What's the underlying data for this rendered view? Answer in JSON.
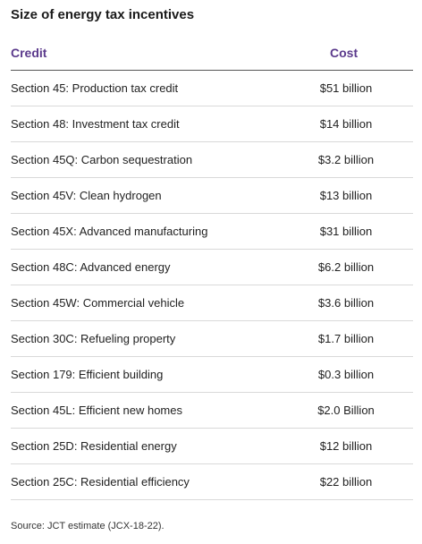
{
  "title": "Size of energy tax incentives",
  "table": {
    "headers": {
      "credit": "Credit",
      "cost": "Cost"
    },
    "rows": [
      {
        "credit": "Section 45: Production tax credit",
        "cost": "$51 billion"
      },
      {
        "credit": "Section 48: Investment tax credit",
        "cost": "$14 billion"
      },
      {
        "credit": "Section 45Q: Carbon sequestration",
        "cost": "$3.2 billion"
      },
      {
        "credit": "Section 45V: Clean hydrogen",
        "cost": "$13 billion"
      },
      {
        "credit": "Section 45X: Advanced manufacturing",
        "cost": "$31 billion"
      },
      {
        "credit": "Section 48C: Advanced energy",
        "cost": "$6.2 billion"
      },
      {
        "credit": "Section 45W: Commercial vehicle",
        "cost": "$3.6 billion"
      },
      {
        "credit": "Section 30C: Refueling property",
        "cost": "$1.7 billion"
      },
      {
        "credit": "Section 179: Efficient building",
        "cost": "$0.3 billion"
      },
      {
        "credit": "Section 45L: Efficient new homes",
        "cost": "$2.0 Billion"
      },
      {
        "credit": "Section 25D: Residential energy",
        "cost": "$12 billion"
      },
      {
        "credit": "Section 25C: Residential efficiency",
        "cost": "$22 billion"
      }
    ]
  },
  "source": "Source: JCT estimate (JCX-18-22).",
  "colors": {
    "header_accent": "#5b3a8c",
    "row_divider": "#d9d9d9",
    "header_divider": "#555555"
  }
}
